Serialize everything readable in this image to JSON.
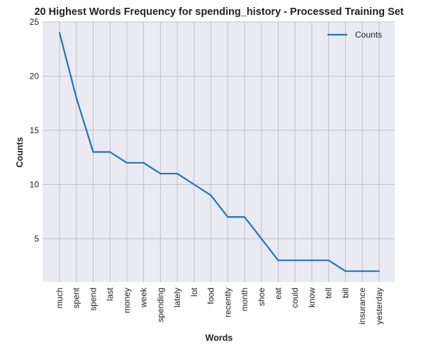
{
  "chart_data": {
    "type": "line",
    "title": "20 Highest Words Frequency for spending_history - Processed Training Set",
    "xlabel": "Words",
    "ylabel": "Counts",
    "categories": [
      "much",
      "spent",
      "spend",
      "last",
      "money",
      "week",
      "spending",
      "lately",
      "lot",
      "food",
      "recently",
      "month",
      "shoe",
      "eat",
      "could",
      "know",
      "tell",
      "bill",
      "insurance",
      "yesterday"
    ],
    "series": [
      {
        "name": "Counts",
        "values": [
          24,
          18,
          13,
          13,
          12,
          12,
          11,
          11,
          10,
          9,
          7,
          7,
          5,
          3,
          3,
          3,
          3,
          2,
          2,
          2
        ]
      }
    ],
    "ylim": [
      1,
      25
    ],
    "yticks": [
      5,
      10,
      15,
      20,
      25
    ],
    "grid": true,
    "legend_position": "top-right",
    "colors": {
      "line": "#1f77b4",
      "background": "#eaeaf2",
      "grid": "#c0c0c8"
    }
  }
}
